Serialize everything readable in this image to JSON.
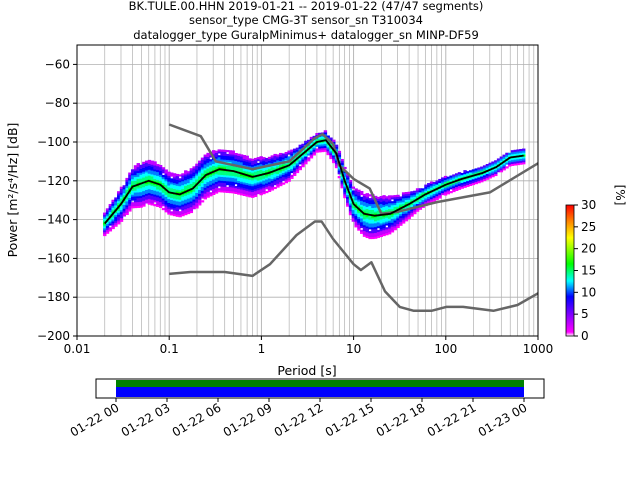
{
  "chart_data": {
    "type": "heatmap",
    "title_lines": [
      "BK.TULE.00.HHN   2019-01-21 -- 2019-01-22  (47/47 segments)",
      "sensor_type CMG-3T sensor_sn T310034",
      "datalogger_type GuralpMinimus+ datalogger_sn MINP-DF59"
    ],
    "xlabel": "Period [s]",
    "ylabel": "Power [m²/s⁴/Hz] [dB]",
    "x_scale": "log",
    "xlim": [
      0.01,
      1000
    ],
    "ylim": [
      -200,
      -50
    ],
    "xticks": [
      {
        "v": 0.01,
        "label": "0.01"
      },
      {
        "v": 0.1,
        "label": "0.1"
      },
      {
        "v": 1,
        "label": "1"
      },
      {
        "v": 10,
        "label": "10"
      },
      {
        "v": 100,
        "label": "100"
      },
      {
        "v": 1000,
        "label": "1000"
      }
    ],
    "yticks": [
      -60,
      -80,
      -100,
      -120,
      -140,
      -160,
      -180,
      -200
    ],
    "grid": true,
    "colorbar": {
      "label": "[%]",
      "range": [
        0,
        30
      ],
      "ticks": [
        0,
        5,
        10,
        15,
        20,
        25,
        30
      ],
      "colors": [
        "#ffffff",
        "#ff00ff",
        "#0000ff",
        "#00ffff",
        "#00ff00",
        "#ffff00",
        "#ff8000",
        "#ff0000"
      ]
    },
    "noise_model_color": "#666666",
    "noise_models": [
      {
        "kind": "high",
        "points": [
          [
            0.1,
            -91
          ],
          [
            0.22,
            -97
          ],
          [
            0.32,
            -110
          ],
          [
            0.8,
            -114
          ],
          [
            2.0,
            -110
          ],
          [
            3.8,
            -98
          ],
          [
            4.6,
            -96
          ],
          [
            6.0,
            -101
          ],
          [
            7.0,
            -112
          ],
          [
            10,
            -119
          ],
          [
            15,
            -124
          ],
          [
            20,
            -137
          ],
          [
            30,
            -136
          ],
          [
            80,
            -131
          ],
          [
            300,
            -126
          ],
          [
            1000,
            -111
          ]
        ]
      },
      {
        "kind": "low",
        "points": [
          [
            0.1,
            -168
          ],
          [
            0.17,
            -167
          ],
          [
            0.4,
            -167
          ],
          [
            0.8,
            -169
          ],
          [
            1.24,
            -163
          ],
          [
            2.4,
            -148
          ],
          [
            3.8,
            -141
          ],
          [
            4.5,
            -141
          ],
          [
            6.0,
            -150
          ],
          [
            10,
            -163
          ],
          [
            12,
            -166
          ],
          [
            15.6,
            -162
          ],
          [
            21.9,
            -177
          ],
          [
            31.6,
            -185
          ],
          [
            45,
            -187
          ],
          [
            70,
            -187
          ],
          [
            101,
            -185
          ],
          [
            154,
            -185
          ],
          [
            328,
            -187
          ],
          [
            600,
            -184
          ],
          [
            1000,
            -178
          ]
        ]
      }
    ],
    "mode_color": "#000000",
    "mode": [
      [
        0.02,
        -142
      ],
      [
        0.03,
        -132
      ],
      [
        0.04,
        -123
      ],
      [
        0.06,
        -120
      ],
      [
        0.08,
        -122
      ],
      [
        0.1,
        -126
      ],
      [
        0.13,
        -127
      ],
      [
        0.18,
        -124
      ],
      [
        0.25,
        -117
      ],
      [
        0.35,
        -114
      ],
      [
        0.5,
        -115
      ],
      [
        0.8,
        -118
      ],
      [
        1.2,
        -116
      ],
      [
        2,
        -112
      ],
      [
        3,
        -105
      ],
      [
        4,
        -100
      ],
      [
        5,
        -99
      ],
      [
        6.5,
        -106
      ],
      [
        8,
        -120
      ],
      [
        10,
        -132
      ],
      [
        13,
        -137
      ],
      [
        17,
        -138
      ],
      [
        25,
        -137
      ],
      [
        40,
        -132
      ],
      [
        60,
        -127
      ],
      [
        100,
        -122
      ],
      [
        150,
        -119
      ],
      [
        250,
        -116
      ],
      [
        350,
        -113
      ],
      [
        500,
        -108
      ],
      [
        700,
        -107
      ]
    ],
    "spread": [
      [
        0.02,
        4
      ],
      [
        0.03,
        7
      ],
      [
        0.05,
        10
      ],
      [
        0.1,
        9
      ],
      [
        0.2,
        10
      ],
      [
        0.5,
        9
      ],
      [
        1,
        8
      ],
      [
        2,
        6
      ],
      [
        4,
        3
      ],
      [
        6,
        4
      ],
      [
        8,
        6
      ],
      [
        10,
        8
      ],
      [
        15,
        10
      ],
      [
        25,
        8
      ],
      [
        50,
        4
      ],
      [
        100,
        3
      ],
      [
        300,
        2
      ],
      [
        700,
        2
      ]
    ],
    "time_axis": {
      "ticks": [
        "01-22 00",
        "01-22 03",
        "01-22 06",
        "01-22 09",
        "01-22 12",
        "01-22 15",
        "01-22 18",
        "01-22 21",
        "01-23 00"
      ],
      "coverage_start_frac": 0,
      "coverage_end_frac": 1,
      "coverage_colors": [
        "#008000",
        "#0000ff"
      ]
    }
  }
}
